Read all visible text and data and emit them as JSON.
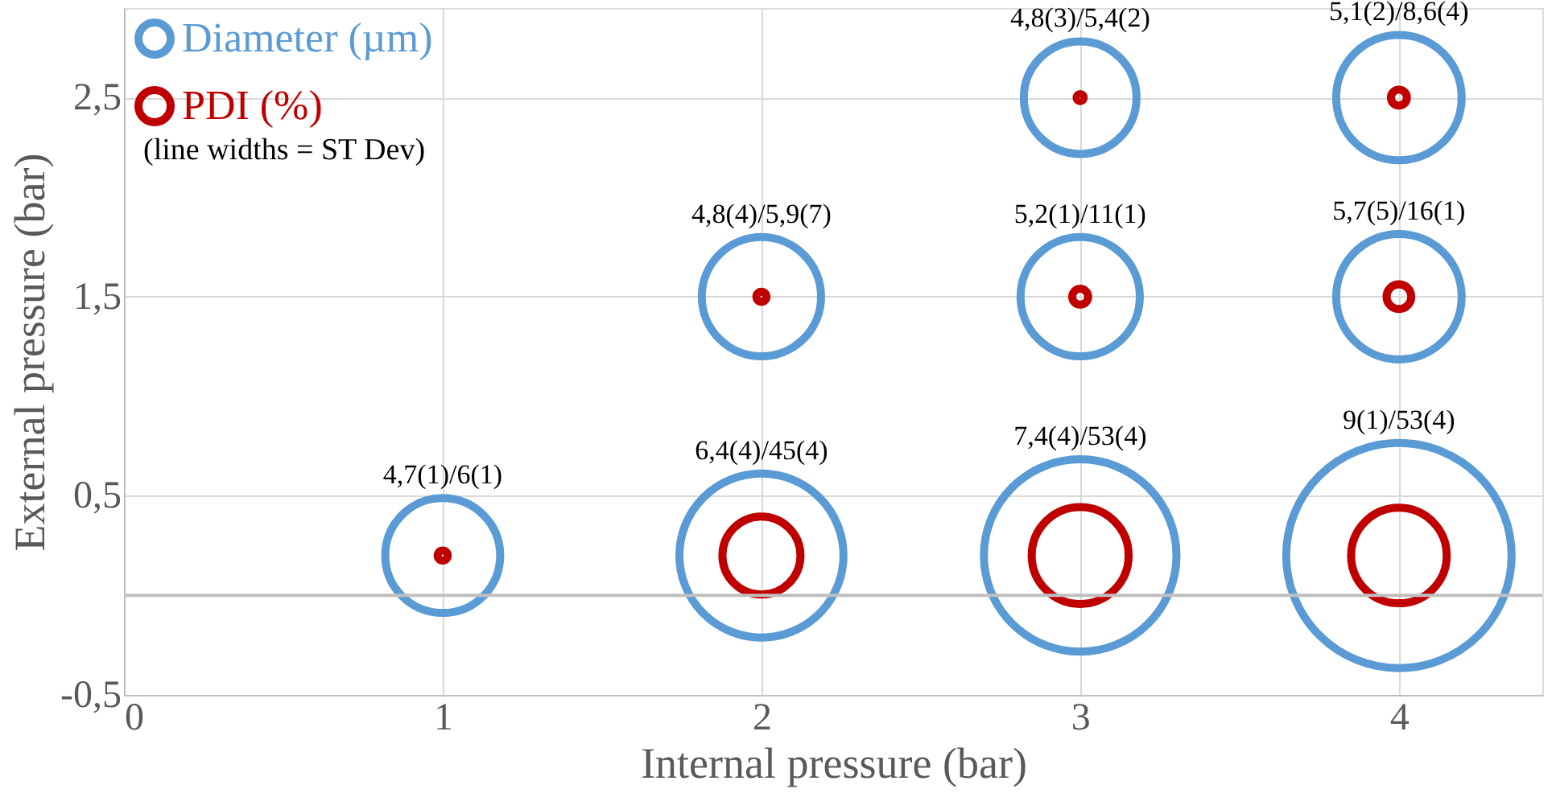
{
  "chart_data": {
    "type": "bubble",
    "xlabel": "Internal pressure (bar)",
    "ylabel": "External pressure (bar)",
    "xlim": [
      0,
      4.45
    ],
    "xticks": [
      0,
      1,
      2,
      3,
      4
    ],
    "ylim": [
      -0.5,
      2.95
    ],
    "yticks": [
      {
        "value": -0.5,
        "label": "-0,5"
      },
      {
        "value": 0.5,
        "label": "0,5"
      },
      {
        "value": 1.5,
        "label": "1,5"
      },
      {
        "value": 2.5,
        "label": "2,5"
      }
    ],
    "grid": true,
    "legend": "top left",
    "ref_lines": [
      {
        "axis": "y",
        "value": 0,
        "label": null,
        "color": "#bfbfbf"
      }
    ],
    "annotations": [
      "(line widths = ST Dev)"
    ],
    "series": [
      {
        "name": "Diameter (µm)",
        "color": "#5b9bd5",
        "x": [
          1,
          2,
          3,
          4,
          2,
          3,
          4,
          3,
          4
        ],
        "values": [
          0.2,
          0.2,
          0.2,
          0.2,
          1.5,
          1.5,
          1.5,
          2.5,
          2.5
        ],
        "sizes": [
          0.26,
          0.53,
          0.73,
          1,
          0.28,
          0.28,
          0.31,
          0.25,
          0.31
        ],
        "value_labels": [
          "4,7(1)/6(1)",
          "6,4(4)/45(4)",
          "7,4(4)/53(4)",
          "9(1)/53(4)",
          "4,8(4)/5,9(7)",
          "5,2(1)/11(1)",
          "5,7(5)/16(1)",
          "4,8(3)/5,4(2)",
          "5,1(2)/8,6(4)"
        ]
      },
      {
        "name": "PDI (%)",
        "color": "#c00000",
        "x": [
          1,
          2,
          3,
          4,
          2,
          3,
          4,
          3,
          4
        ],
        "values": [
          0.2,
          0.2,
          0.2,
          0.2,
          1.5,
          1.5,
          1.5,
          2.5,
          2.5
        ],
        "sizes": [
          0.002,
          0.12,
          0.185,
          0.18,
          0.002,
          0.005,
          0.012,
          0.001,
          0.005
        ]
      }
    ]
  }
}
